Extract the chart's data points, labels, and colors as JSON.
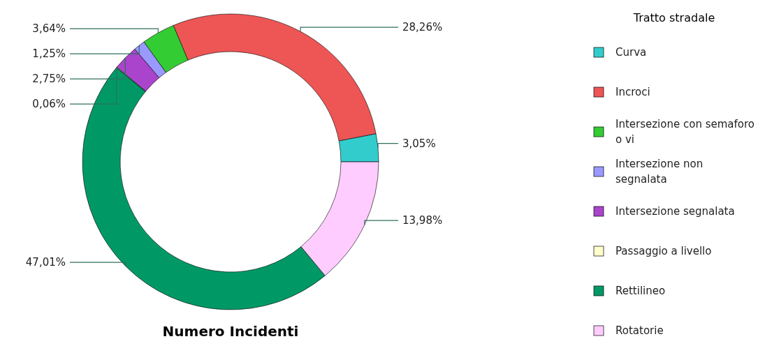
{
  "chart_data": {
    "type": "donut",
    "title": "Numero Incidenti",
    "legend_title": "Tratto stradale",
    "legend": "right",
    "categories": [
      "Curva",
      "Incroci",
      "Intersezione con semaforo o vi",
      "Intersezione non segnalata",
      "Intersezione segnalata",
      "Passaggio a livello",
      "Rettilineo",
      "Rotatorie"
    ],
    "values": [
      3.05,
      28.26,
      3.64,
      1.25,
      2.75,
      0.06,
      47.01,
      13.98
    ],
    "value_labels": [
      "3,05%",
      "28,26%",
      "3,64%",
      "1,25%",
      "2,75%",
      "0,06%",
      "47,01%",
      "13,98%"
    ],
    "colors": [
      "#33cccc",
      "#ee5555",
      "#33cc33",
      "#9999ff",
      "#aa44cc",
      "#ffffcc",
      "#009966",
      "#ffccff"
    ]
  }
}
